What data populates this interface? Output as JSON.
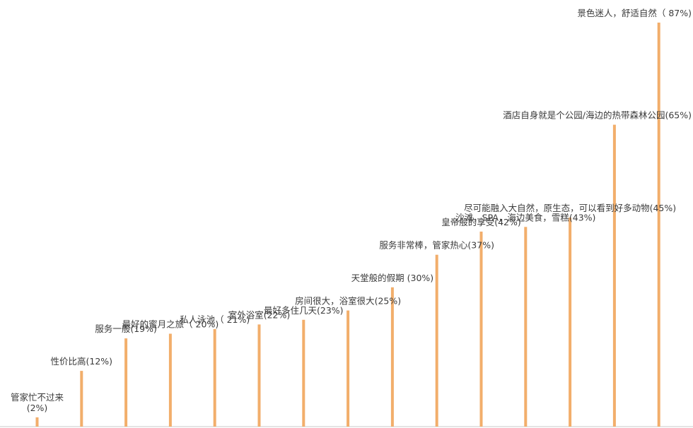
{
  "chart_data": {
    "type": "bar",
    "title": "",
    "xlabel": "",
    "ylabel": "",
    "ylim": [
      0,
      87
    ],
    "grid": false,
    "legend": "none",
    "bar_color": "#F2AE6B",
    "categories": [
      "管家忙不过来\n(2%)",
      "性价比高(12%)",
      "服务一般(19%)",
      "最好的蜜月之旅（ 20%)",
      "私人泳池（ 21%)",
      "室外浴室(22%)",
      "最好多住几天(23%)",
      "房间很大，浴室很大(25%)",
      "天堂般的假期 (30%)",
      "服务非常棒，管家热心(37%)",
      "皇帝般的享受(42%)",
      "沙滩，SPA，海边美食，雪糕(43%)",
      "尽可能融入大自然，原生态，可以看到好多动物(45%)",
      "酒店自身就是个公园/海边的热带森林公园(65%)",
      "景色迷人，舒适自然（ 87%)"
    ],
    "values": [
      2,
      12,
      19,
      20,
      21,
      22,
      23,
      25,
      30,
      37,
      42,
      43,
      45,
      65,
      87
    ]
  }
}
